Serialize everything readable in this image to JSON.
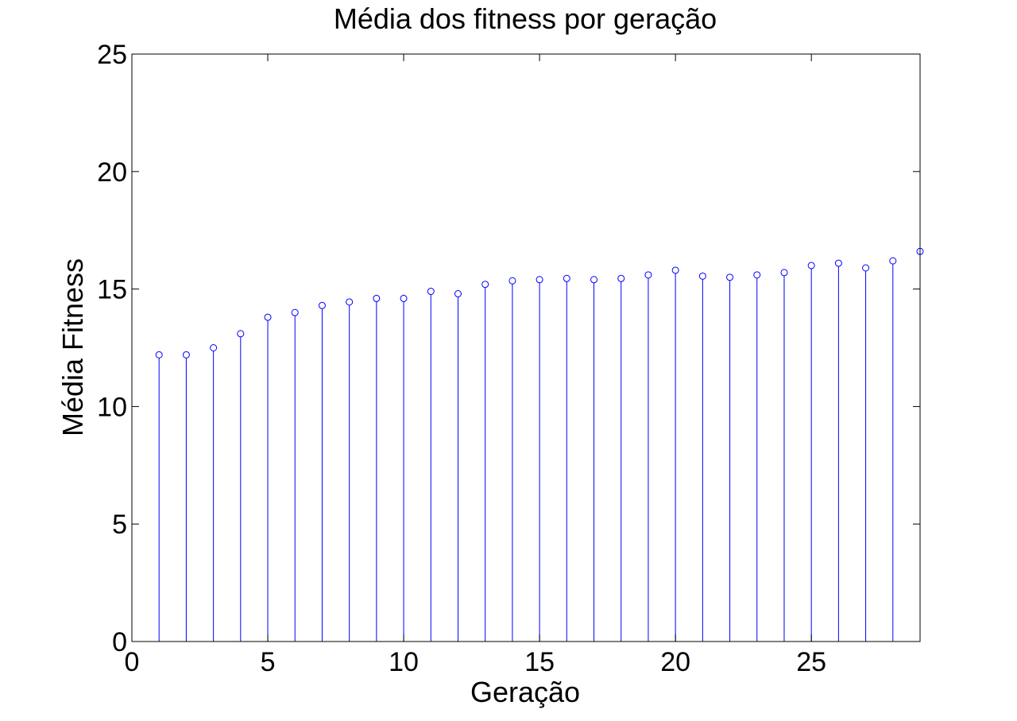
{
  "chart_data": {
    "type": "stem",
    "title": "Média dos fitness por geração",
    "xlabel": "Geração",
    "ylabel": "Média Fitness",
    "xlim": [
      0,
      29
    ],
    "ylim": [
      0,
      25
    ],
    "xticks": [
      "0",
      "5",
      "10",
      "15",
      "20",
      "25"
    ],
    "yticks": [
      "0",
      "5",
      "10",
      "15",
      "20",
      "25"
    ],
    "grid": false,
    "marker": "circle",
    "series_color": "#0000ff",
    "x": [
      1,
      2,
      3,
      4,
      5,
      6,
      7,
      8,
      9,
      10,
      11,
      12,
      13,
      14,
      15,
      16,
      17,
      18,
      19,
      20,
      21,
      22,
      23,
      24,
      25,
      26,
      27,
      28,
      29
    ],
    "y": [
      12.2,
      12.2,
      12.5,
      13.1,
      13.8,
      14.0,
      14.3,
      14.45,
      14.6,
      14.6,
      14.9,
      14.8,
      15.2,
      15.35,
      15.4,
      15.45,
      15.4,
      15.45,
      15.6,
      15.8,
      15.55,
      15.5,
      15.6,
      15.7,
      16.0,
      16.1,
      15.9,
      16.2,
      16.6
    ]
  }
}
